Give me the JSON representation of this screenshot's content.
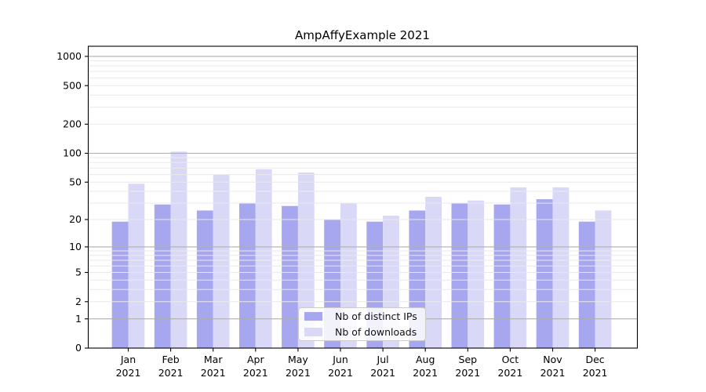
{
  "chart_data": {
    "type": "bar",
    "title": "AmpAffyExample 2021",
    "categories": [
      "Jan 2021",
      "Feb 2021",
      "Mar 2021",
      "Apr 2021",
      "May 2021",
      "Jun 2021",
      "Jul 2021",
      "Aug 2021",
      "Sep 2021",
      "Oct 2021",
      "Nov 2021",
      "Dec 2021"
    ],
    "series": [
      {
        "name": "Nb of distinct IPs",
        "color": "#a7a7ef",
        "values": [
          19,
          29,
          25,
          30,
          28,
          20,
          19,
          25,
          30,
          29,
          33,
          19
        ]
      },
      {
        "name": "Nb of downloads",
        "color": "#d9d9f7",
        "values": [
          48,
          104,
          60,
          68,
          63,
          30,
          22,
          35,
          32,
          44,
          44,
          25
        ]
      }
    ],
    "y_scale": "log10(value+1)",
    "y_ticks": [
      0,
      1,
      2,
      5,
      10,
      20,
      50,
      100,
      200,
      500,
      1000
    ],
    "ylim": [
      0,
      1270
    ],
    "xlabel": "",
    "ylabel": "",
    "grid": "major lines at 1,10,100,1000; faint minor lines at 2-9 per decade",
    "legend_position": "lower center"
  },
  "colors": {
    "major_grid": "#aeaeae",
    "minor_grid": "#e9e9e9",
    "frame": "#000000",
    "legend_border": "#cccccc"
  }
}
